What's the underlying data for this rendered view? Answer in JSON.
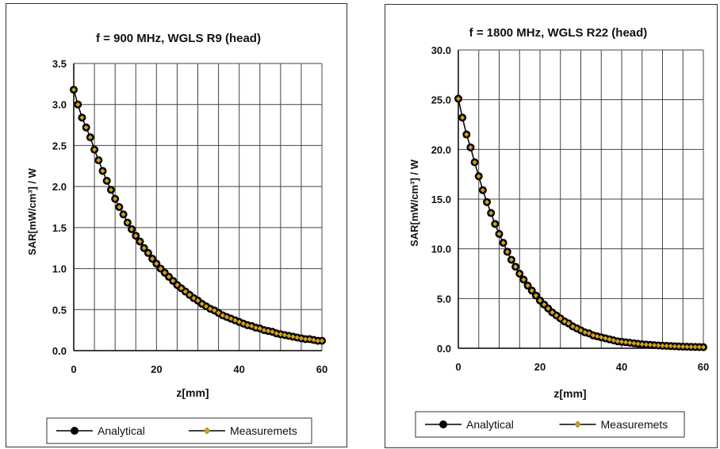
{
  "chart_data": [
    {
      "type": "scatter",
      "title": "f = 900 MHz, WGLS R9 (head)",
      "xlabel": "z[mm]",
      "ylabel": "SAR[mW/cm³] / W",
      "xlim": [
        0,
        60
      ],
      "ylim": [
        0,
        3.5
      ],
      "xticks": [
        "0",
        "20",
        "40",
        "60"
      ],
      "yticks": [
        "0.0",
        "0.5",
        "1.0",
        "1.5",
        "2.0",
        "2.5",
        "3.0",
        "3.5"
      ],
      "grid": true,
      "legend_position": "bottom",
      "series": [
        {
          "name": "Analytical",
          "color": "#000000",
          "x": [
            0,
            1,
            2,
            3,
            4,
            5,
            6,
            7,
            8,
            9,
            10,
            11,
            12,
            13,
            14,
            15,
            16,
            17,
            18,
            19,
            20,
            21,
            22,
            23,
            24,
            25,
            26,
            27,
            28,
            29,
            30,
            31,
            32,
            33,
            34,
            35,
            36,
            37,
            38,
            39,
            40,
            41,
            42,
            43,
            44,
            45,
            46,
            47,
            48,
            49,
            50,
            51,
            52,
            53,
            54,
            55,
            56,
            57,
            58,
            59,
            60
          ],
          "y": [
            3.18,
            3.0,
            2.84,
            2.72,
            2.6,
            2.45,
            2.32,
            2.19,
            2.07,
            1.96,
            1.85,
            1.75,
            1.66,
            1.56,
            1.48,
            1.4,
            1.33,
            1.25,
            1.19,
            1.12,
            1.06,
            1.0,
            0.95,
            0.9,
            0.85,
            0.8,
            0.76,
            0.72,
            0.68,
            0.64,
            0.61,
            0.57,
            0.54,
            0.51,
            0.49,
            0.46,
            0.43,
            0.41,
            0.39,
            0.37,
            0.35,
            0.33,
            0.31,
            0.3,
            0.28,
            0.27,
            0.25,
            0.24,
            0.23,
            0.21,
            0.2,
            0.19,
            0.18,
            0.17,
            0.16,
            0.15,
            0.14,
            0.14,
            0.13,
            0.12,
            0.12
          ]
        },
        {
          "name": "Measuremets",
          "color": "#d4a017",
          "x": [
            0,
            1,
            2,
            3,
            4,
            5,
            6,
            7,
            8,
            9,
            10,
            11,
            12,
            13,
            14,
            15,
            16,
            17,
            18,
            19,
            20,
            21,
            22,
            23,
            24,
            25,
            26,
            27,
            28,
            29,
            30,
            31,
            32,
            33,
            34,
            35,
            36,
            37,
            38,
            39,
            40,
            41,
            42,
            43,
            44,
            45,
            46,
            47,
            48,
            49,
            50,
            51,
            52,
            53,
            54,
            55,
            56,
            57,
            58,
            59,
            60
          ],
          "y": [
            3.18,
            3.0,
            2.84,
            2.72,
            2.6,
            2.45,
            2.32,
            2.19,
            2.07,
            1.96,
            1.85,
            1.75,
            1.66,
            1.56,
            1.48,
            1.4,
            1.33,
            1.25,
            1.19,
            1.12,
            1.06,
            1.0,
            0.95,
            0.9,
            0.85,
            0.8,
            0.76,
            0.72,
            0.68,
            0.64,
            0.61,
            0.57,
            0.54,
            0.51,
            0.49,
            0.46,
            0.43,
            0.41,
            0.39,
            0.37,
            0.35,
            0.33,
            0.31,
            0.3,
            0.28,
            0.27,
            0.25,
            0.24,
            0.23,
            0.21,
            0.2,
            0.19,
            0.18,
            0.17,
            0.16,
            0.15,
            0.14,
            0.14,
            0.13,
            0.12,
            0.12
          ]
        }
      ]
    },
    {
      "type": "scatter",
      "title": "f = 1800 MHz, WGLS R22 (head)",
      "xlabel": "z[mm]",
      "ylabel": "SAR[mW/cm³] / W",
      "xlim": [
        0,
        60
      ],
      "ylim": [
        0,
        30
      ],
      "xticks": [
        "0",
        "20",
        "40",
        "60"
      ],
      "yticks": [
        "0.0",
        "5.0",
        "10.0",
        "15.0",
        "20.0",
        "25.0",
        "30.0"
      ],
      "grid": true,
      "legend_position": "bottom",
      "series": [
        {
          "name": "Analytical",
          "color": "#000000",
          "x": [
            0,
            1,
            2,
            3,
            4,
            5,
            6,
            7,
            8,
            9,
            10,
            11,
            12,
            13,
            14,
            15,
            16,
            17,
            18,
            19,
            20,
            21,
            22,
            23,
            24,
            25,
            26,
            27,
            28,
            29,
            30,
            31,
            32,
            33,
            34,
            35,
            36,
            37,
            38,
            39,
            40,
            41,
            42,
            43,
            44,
            45,
            46,
            47,
            48,
            49,
            50,
            51,
            52,
            53,
            54,
            55,
            56,
            57,
            58,
            59,
            60
          ],
          "y": [
            25.1,
            23.2,
            21.5,
            20.2,
            18.7,
            17.3,
            15.9,
            14.7,
            13.6,
            12.5,
            11.5,
            10.6,
            9.7,
            8.9,
            8.2,
            7.5,
            6.9,
            6.3,
            5.8,
            5.3,
            4.8,
            4.4,
            4.0,
            3.6,
            3.3,
            3.0,
            2.7,
            2.5,
            2.2,
            2.0,
            1.8,
            1.6,
            1.5,
            1.3,
            1.2,
            1.1,
            1.0,
            0.9,
            0.8,
            0.7,
            0.65,
            0.6,
            0.55,
            0.5,
            0.45,
            0.4,
            0.37,
            0.34,
            0.31,
            0.28,
            0.26,
            0.24,
            0.22,
            0.2,
            0.18,
            0.16,
            0.15,
            0.14,
            0.13,
            0.12,
            0.11
          ]
        },
        {
          "name": "Measuremets",
          "color": "#d4a017",
          "x": [
            0,
            1,
            2,
            3,
            4,
            5,
            6,
            7,
            8,
            9,
            10,
            11,
            12,
            13,
            14,
            15,
            16,
            17,
            18,
            19,
            20,
            21,
            22,
            23,
            24,
            25,
            26,
            27,
            28,
            29,
            30,
            31,
            32,
            33,
            34,
            35,
            36,
            37,
            38,
            39,
            40,
            41,
            42,
            43,
            44,
            45,
            46,
            47,
            48,
            49,
            50,
            51,
            52,
            53,
            54,
            55,
            56,
            57,
            58,
            59,
            60
          ],
          "y": [
            25.1,
            23.2,
            21.5,
            20.2,
            18.7,
            17.3,
            15.9,
            14.7,
            13.6,
            12.5,
            11.5,
            10.6,
            9.7,
            8.9,
            8.2,
            7.5,
            6.9,
            6.3,
            5.8,
            5.3,
            4.8,
            4.4,
            4.0,
            3.6,
            3.3,
            3.0,
            2.7,
            2.5,
            2.2,
            2.0,
            1.8,
            1.6,
            1.5,
            1.3,
            1.2,
            1.1,
            1.0,
            0.9,
            0.8,
            0.7,
            0.65,
            0.6,
            0.55,
            0.5,
            0.45,
            0.4,
            0.37,
            0.34,
            0.31,
            0.28,
            0.26,
            0.24,
            0.22,
            0.2,
            0.18,
            0.16,
            0.15,
            0.14,
            0.13,
            0.12,
            0.11
          ]
        }
      ]
    }
  ]
}
